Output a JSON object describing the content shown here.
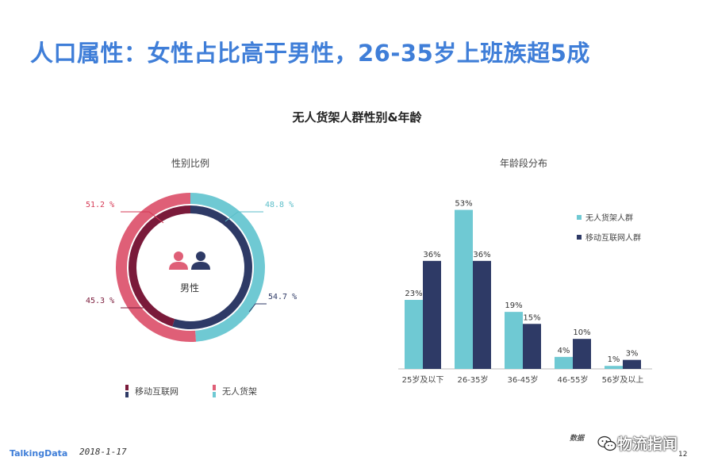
{
  "slide": {
    "title": "人口属性：女性占比高于男性，26-35岁上班族超5成",
    "section_title": "无人货架人群性别&年龄"
  },
  "footer": {
    "logo": "TalkingData",
    "date": "2018-1-17",
    "source": "数据",
    "watermark": "物流指闻",
    "page": "12"
  },
  "chart_data": [
    {
      "type": "pie",
      "title": "性别比例",
      "center_label": "男性",
      "series": [
        {
          "name": "移动互联网",
          "values": [
            {
              "label": "女性",
              "value": 54.7
            },
            {
              "label": "男性",
              "value": 45.3
            }
          ],
          "labels": [
            "45.3 %",
            "54.7 %"
          ]
        },
        {
          "name": "无人货架",
          "values": [
            {
              "label": "男性",
              "value": 48.8
            },
            {
              "label": "女性",
              "value": 51.2
            }
          ],
          "labels": [
            "48.8 %",
            "51.2 %"
          ]
        }
      ],
      "legend": [
        "移动互联网",
        "无人货架"
      ],
      "legend_position": "bottom",
      "colors": {
        "inner_primary": "#2e3a66",
        "inner_secondary": "#7a1a3a",
        "outer_primary": "#6fc9d3",
        "outer_secondary": "#df5f77",
        "label_dark": "#7a1a3a",
        "label_pink": "#d63a55",
        "label_teal": "#5bbec9",
        "label_navy": "#2e3a66"
      }
    },
    {
      "type": "bar",
      "title": "年龄段分布",
      "categories": [
        "25岁及以下",
        "26-35岁",
        "36-45岁",
        "46-55岁",
        "56岁及以上"
      ],
      "series": [
        {
          "name": "无人货架人群",
          "values": [
            23,
            53,
            19,
            4,
            1
          ],
          "color": "#6fc9d3"
        },
        {
          "name": "移动互联网人群",
          "values": [
            36,
            36,
            15,
            10,
            3
          ],
          "color": "#2e3a66"
        }
      ],
      "value_suffix": "%",
      "ylim": [
        0,
        55
      ],
      "grid": false,
      "legend_position": "top-right"
    }
  ]
}
